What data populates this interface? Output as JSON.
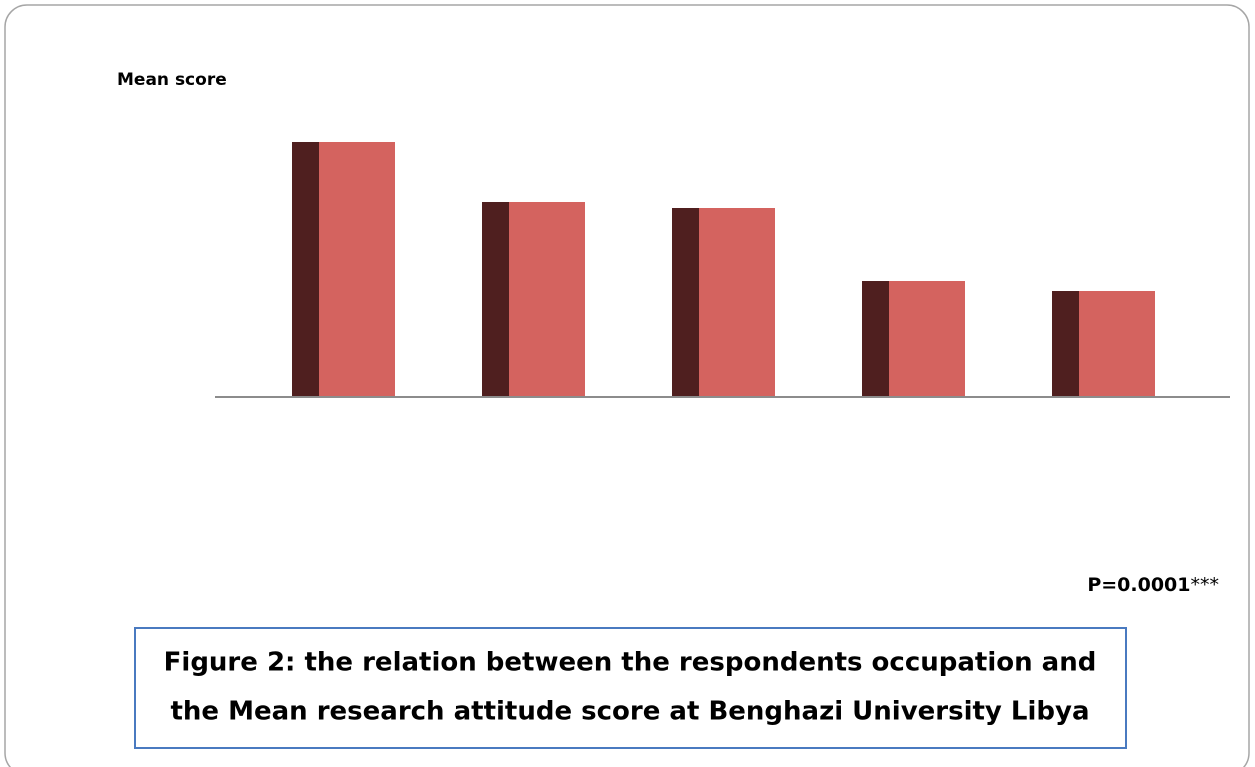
{
  "chart_data": {
    "type": "bar",
    "y_label": "Mean score",
    "categories": [
      null,
      null,
      null,
      null,
      null
    ],
    "values": [
      2.55,
      1.95,
      1.89,
      1.16,
      1.06
    ],
    "color": "#d4635f",
    "side_color": "#4f1f1f",
    "ylim": [
      0,
      3
    ],
    "annotation": "P=0.0001",
    "annotation_suffix": "***",
    "caption": [
      "Figure 2: the relation between the respondents occupation and",
      "the Mean research attitude score at Benghazi University  Libya"
    ]
  }
}
